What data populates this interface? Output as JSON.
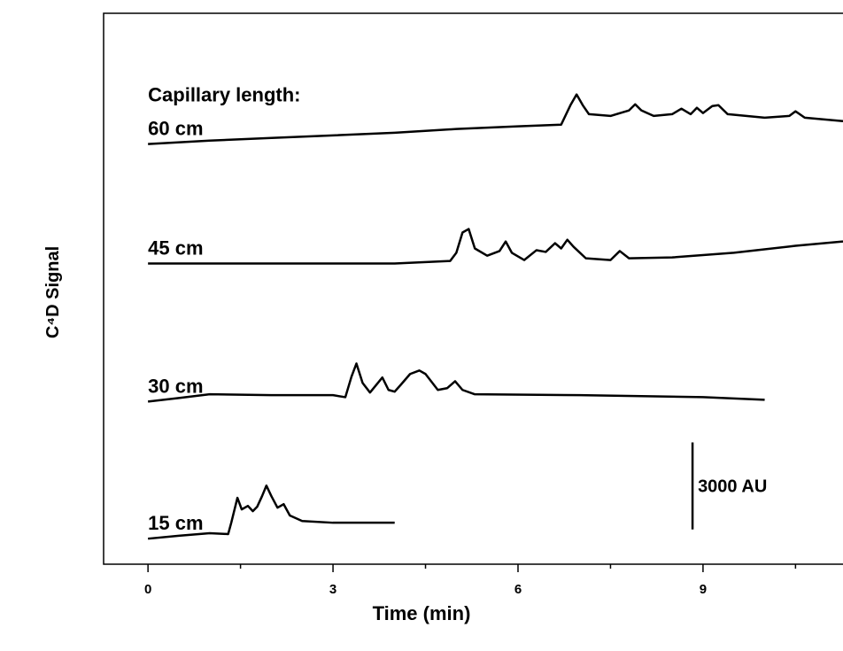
{
  "chart_data": {
    "type": "line",
    "xlabel": "Time (min)",
    "ylabel": "C⁴D Signal",
    "legend_title": "Capillary length:",
    "xlim": [
      -0.72,
      11.27
    ],
    "ylim": [
      0,
      19000
    ],
    "xticks": [
      0,
      3,
      6,
      9
    ],
    "minor_xticks": [
      1.5,
      4.5,
      7.5,
      10.5
    ],
    "line_color": "#000000",
    "scale_bar": {
      "x": 8.83,
      "y": 1200,
      "length": 3000,
      "label": "3000 AU"
    },
    "series": [
      {
        "name": "60 cm",
        "x": [
          0,
          1,
          2,
          3,
          4,
          5,
          6,
          6.7,
          6.85,
          6.95,
          7.05,
          7.15,
          7.5,
          7.8,
          7.9,
          8.0,
          8.2,
          8.5,
          8.65,
          8.8,
          8.9,
          9.0,
          9.15,
          9.25,
          9.4,
          10,
          10.4,
          10.5,
          10.65,
          11.27
        ],
        "values": [
          14490,
          14610,
          14700,
          14790,
          14880,
          15010,
          15100,
          15160,
          15830,
          16200,
          15830,
          15520,
          15460,
          15650,
          15860,
          15650,
          15460,
          15520,
          15710,
          15520,
          15740,
          15560,
          15800,
          15830,
          15520,
          15400,
          15460,
          15620,
          15400,
          15280
        ]
      },
      {
        "name": "45 cm",
        "x": [
          0,
          2,
          4,
          4.9,
          5.0,
          5.1,
          5.2,
          5.3,
          5.5,
          5.7,
          5.8,
          5.9,
          6.1,
          6.3,
          6.45,
          6.6,
          6.7,
          6.8,
          6.9,
          7.1,
          7.5,
          7.65,
          7.8,
          8.5,
          9.5,
          10.5,
          11.27
        ],
        "values": [
          10370,
          10370,
          10370,
          10460,
          10740,
          11440,
          11560,
          10890,
          10640,
          10800,
          11130,
          10740,
          10490,
          10830,
          10770,
          11070,
          10890,
          11190,
          10950,
          10550,
          10490,
          10800,
          10550,
          10580,
          10740,
          10980,
          11130
        ]
      },
      {
        "name": "30 cm",
        "x": [
          0,
          0.5,
          1,
          2,
          3,
          3.2,
          3.3,
          3.38,
          3.48,
          3.6,
          3.75,
          3.8,
          3.9,
          4.0,
          4.1,
          4.25,
          4.4,
          4.5,
          4.7,
          4.85,
          4.98,
          5.1,
          5.3,
          7,
          9,
          10
        ],
        "values": [
          5610,
          5730,
          5860,
          5830,
          5830,
          5760,
          6470,
          6920,
          6250,
          5920,
          6310,
          6440,
          6010,
          5950,
          6190,
          6560,
          6680,
          6560,
          6010,
          6070,
          6310,
          6010,
          5860,
          5830,
          5760,
          5670
        ]
      },
      {
        "name": "15 cm",
        "x": [
          0,
          0.5,
          1,
          1.3,
          1.35,
          1.45,
          1.52,
          1.62,
          1.7,
          1.77,
          1.85,
          1.92,
          2.0,
          2.1,
          2.2,
          2.3,
          2.5,
          3,
          4
        ],
        "values": [
          880,
          980,
          1070,
          1040,
          1430,
          2290,
          1890,
          2010,
          1830,
          1980,
          2350,
          2710,
          2350,
          1950,
          2070,
          1680,
          1490,
          1430,
          1430
        ]
      }
    ]
  }
}
